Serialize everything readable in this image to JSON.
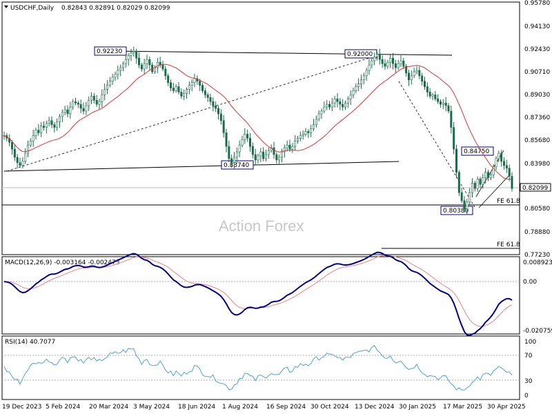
{
  "header": {
    "symbol": "USDCHF,Daily",
    "ohlc": "0.82843 0.82891 0.82029 0.82099"
  },
  "watermark": "Action Forex",
  "colors": {
    "candles": "#1a6b4a",
    "ma": "#e03030",
    "macd": "#00008b",
    "signal": "#f08080",
    "rsi": "#4aa3df",
    "trendline": "#000000",
    "label_border": "#000080"
  },
  "chart_data": [
    {
      "type": "candlestick",
      "name": "USDCHF Daily",
      "ylim": [
        0.7723,
        0.9578
      ],
      "yticks": [
        "0.95780",
        "0.94130",
        "0.92430",
        "0.90710",
        "0.89030",
        "0.87360",
        "0.85680",
        "0.83980",
        "0.82099",
        "0.80580",
        "0.78880",
        "0.77230"
      ],
      "xticks": [
        "19 Dec 2023",
        "5 Feb 2024",
        "20 Mar 2024",
        "3 May 2024",
        "18 Jun 2024",
        "1 Aug 2024",
        "16 Sep 2024",
        "30 Oct 2024",
        "13 Dec 2024",
        "30 Jan 2025",
        "17 Mar 2025",
        "30 Apr 2025"
      ],
      "last_price": 0.82099,
      "annotations": [
        {
          "text": "0.92230",
          "x": "2024-04-16",
          "y": 0.9223
        },
        {
          "text": "0.92000",
          "x": "2025-01-13",
          "y": 0.92
        },
        {
          "text": "0.83740",
          "x": "2024-08-05",
          "y": 0.8374
        },
        {
          "text": "0.84750",
          "x": "2025-04-22",
          "y": 0.8475
        },
        {
          "text": "0.80380",
          "x": "2025-04-21",
          "y": 0.8038
        }
      ],
      "levels": [
        {
          "text": "FE 61.8",
          "y": 0.8085
        },
        {
          "text": "FE 61.8",
          "y": 0.776
        }
      ],
      "closes": [
        0.86,
        0.858,
        0.855,
        0.85,
        0.844,
        0.84,
        0.838,
        0.841,
        0.847,
        0.853,
        0.856,
        0.86,
        0.864,
        0.862,
        0.867,
        0.866,
        0.869,
        0.871,
        0.868,
        0.866,
        0.87,
        0.874,
        0.877,
        0.879,
        0.876,
        0.881,
        0.885,
        0.884,
        0.883,
        0.88,
        0.878,
        0.882,
        0.886,
        0.889,
        0.886,
        0.883,
        0.885,
        0.89,
        0.894,
        0.897,
        0.9,
        0.903,
        0.905,
        0.908,
        0.91,
        0.913,
        0.916,
        0.919,
        0.921,
        0.922,
        0.917,
        0.912,
        0.909,
        0.913,
        0.916,
        0.912,
        0.907,
        0.91,
        0.914,
        0.912,
        0.909,
        0.904,
        0.899,
        0.895,
        0.893,
        0.896,
        0.892,
        0.889,
        0.891,
        0.894,
        0.897,
        0.899,
        0.902,
        0.9,
        0.897,
        0.893,
        0.89,
        0.888,
        0.885,
        0.882,
        0.88,
        0.876,
        0.871,
        0.862,
        0.852,
        0.843,
        0.84,
        0.844,
        0.848,
        0.853,
        0.857,
        0.861,
        0.858,
        0.852,
        0.846,
        0.842,
        0.845,
        0.848,
        0.843,
        0.846,
        0.849,
        0.851,
        0.846,
        0.842,
        0.844,
        0.848,
        0.851,
        0.853,
        0.85,
        0.852,
        0.856,
        0.858,
        0.86,
        0.861,
        0.863,
        0.862,
        0.865,
        0.868,
        0.872,
        0.876,
        0.878,
        0.881,
        0.883,
        0.881,
        0.884,
        0.887,
        0.885,
        0.883,
        0.881,
        0.884,
        0.887,
        0.89,
        0.893,
        0.896,
        0.898,
        0.901,
        0.904,
        0.908,
        0.912,
        0.915,
        0.918,
        0.92,
        0.916,
        0.913,
        0.911,
        0.914,
        0.917,
        0.913,
        0.91,
        0.913,
        0.915,
        0.911,
        0.906,
        0.901,
        0.904,
        0.907,
        0.908,
        0.904,
        0.9,
        0.896,
        0.892,
        0.889,
        0.89,
        0.887,
        0.885,
        0.883,
        0.884,
        0.882,
        0.878,
        0.866,
        0.85,
        0.833,
        0.818,
        0.812,
        0.806,
        0.811,
        0.818,
        0.825,
        0.821,
        0.828,
        0.824,
        0.829,
        0.833,
        0.829,
        0.831,
        0.837,
        0.843,
        0.847,
        0.841,
        0.838,
        0.836,
        0.83,
        0.821
      ]
    },
    {
      "type": "line",
      "name": "MACD(12,26,9) -0.003164 -0.002473",
      "ylim": [
        -0.022,
        0.01
      ],
      "yticks": [
        "0.008923",
        "0.00",
        "-0.020759"
      ],
      "series_labels": [
        "MACD",
        "Signal"
      ]
    },
    {
      "type": "line",
      "name": "RSI(14) 40.7077",
      "ylim": [
        0,
        100
      ],
      "yticks": [
        "100",
        "70",
        "30",
        "0"
      ],
      "reference_lines": [
        70,
        30
      ]
    }
  ]
}
